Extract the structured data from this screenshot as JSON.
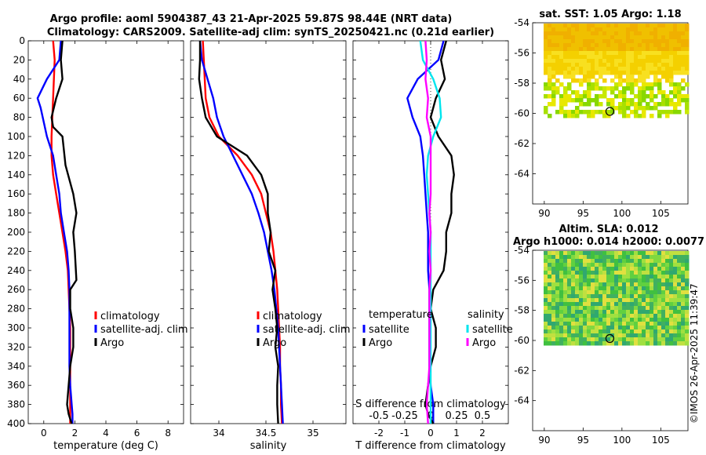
{
  "titles": {
    "line1": "Argo profile: aoml 5904387_43 21-Apr-2025 59.87S 98.44E (NRT data)",
    "line2": "Climatology: CARS2009. Satellite-adj clim: synTS_20250421.nc (0.21d earlier)"
  },
  "depth_axis": {
    "min": 0,
    "max": 400,
    "ticks": [
      0,
      20,
      40,
      60,
      80,
      100,
      120,
      140,
      160,
      180,
      200,
      220,
      240,
      260,
      280,
      300,
      320,
      340,
      360,
      380,
      400
    ]
  },
  "chart_data": [
    {
      "id": "temperature",
      "type": "line",
      "xlabel": "temperature (deg C)",
      "ylabel": "depth",
      "xlim": [
        -1,
        9
      ],
      "ylim": [
        400,
        0
      ],
      "xticks": [
        0,
        2,
        4,
        6,
        8
      ],
      "series": [
        {
          "name": "climatology",
          "color": "#ff0000",
          "x": [
            0.6,
            0.7,
            0.65,
            0.6,
            0.55,
            0.5,
            0.5,
            0.6,
            0.8,
            1.0,
            1.2,
            1.4,
            1.55,
            1.6,
            1.65,
            1.7,
            1.7,
            1.7,
            1.7,
            1.7,
            1.7,
            1.7
          ],
          "y": [
            0,
            20,
            40,
            60,
            80,
            100,
            120,
            140,
            160,
            180,
            200,
            220,
            240,
            260,
            280,
            300,
            320,
            340,
            360,
            380,
            390,
            400
          ]
        },
        {
          "name": "satellite-adj. clim",
          "color": "#0000ff",
          "x": [
            1.1,
            1.0,
            0.2,
            -0.4,
            -0.2,
            0.2,
            0.6,
            0.8,
            1.0,
            1.1,
            1.3,
            1.5,
            1.6,
            1.65,
            1.65,
            1.65,
            1.65,
            1.65,
            1.7,
            1.8,
            1.85,
            1.85
          ],
          "y": [
            0,
            20,
            40,
            60,
            70,
            100,
            120,
            140,
            160,
            180,
            200,
            220,
            240,
            260,
            280,
            300,
            320,
            340,
            360,
            380,
            390,
            400
          ]
        },
        {
          "name": "Argo",
          "color": "#000000",
          "x": [
            1.2,
            1.1,
            1.2,
            0.8,
            0.5,
            0.6,
            1.2,
            1.4,
            1.9,
            2.1,
            1.9,
            2.0,
            2.1,
            1.7,
            1.7,
            1.9,
            1.9,
            1.7,
            1.6,
            1.5,
            1.6,
            1.8
          ],
          "y": [
            0,
            20,
            40,
            60,
            80,
            90,
            100,
            130,
            160,
            180,
            200,
            220,
            250,
            260,
            280,
            300,
            320,
            340,
            360,
            380,
            390,
            400
          ]
        }
      ],
      "legend": {
        "location": "lower-right",
        "entries": [
          "climatology",
          "satellite-adj. clim",
          "Argo"
        ]
      }
    },
    {
      "id": "salinity",
      "type": "line",
      "xlabel": "salinity",
      "ylabel": "depth",
      "xlim": [
        33.7,
        35.35
      ],
      "ylim": [
        400,
        0
      ],
      "xticks": [
        34,
        34.5,
        35
      ],
      "xtick_labels": [
        "34",
        "34.5",
        "35"
      ],
      "series": [
        {
          "name": "climatology",
          "color": "#ff0000",
          "x": [
            33.83,
            33.84,
            33.85,
            33.86,
            33.9,
            34.0,
            34.2,
            34.35,
            34.45,
            34.5,
            34.55,
            34.58,
            34.6,
            34.62,
            34.63,
            34.64,
            34.65,
            34.65,
            34.66,
            34.66,
            34.67
          ],
          "y": [
            0,
            20,
            40,
            60,
            80,
            100,
            120,
            140,
            160,
            180,
            200,
            220,
            240,
            260,
            280,
            300,
            320,
            340,
            360,
            380,
            400
          ]
        },
        {
          "name": "satellite-adj. clim",
          "color": "#0000ff",
          "x": [
            33.8,
            33.82,
            33.88,
            33.94,
            33.98,
            34.05,
            34.15,
            34.25,
            34.35,
            34.42,
            34.48,
            34.52,
            34.56,
            34.59,
            34.61,
            34.63,
            34.64,
            34.65,
            34.66,
            34.67,
            34.68
          ],
          "y": [
            0,
            20,
            40,
            60,
            80,
            100,
            120,
            140,
            160,
            180,
            200,
            220,
            240,
            260,
            280,
            300,
            320,
            340,
            360,
            380,
            400
          ]
        },
        {
          "name": "Argo",
          "color": "#000000",
          "x": [
            33.8,
            33.8,
            33.79,
            33.82,
            33.86,
            33.98,
            34.3,
            34.45,
            34.52,
            34.52,
            34.55,
            34.53,
            34.6,
            34.57,
            34.6,
            34.62,
            34.6,
            34.63,
            34.62,
            34.62,
            34.63
          ],
          "y": [
            0,
            20,
            40,
            60,
            80,
            100,
            120,
            140,
            160,
            180,
            200,
            220,
            240,
            260,
            280,
            300,
            320,
            340,
            360,
            380,
            400
          ]
        }
      ],
      "legend": {
        "location": "lower-right",
        "entries": [
          "climatology",
          "satellite-adj. clim",
          "Argo"
        ]
      }
    },
    {
      "id": "difference",
      "type": "line",
      "xlabel": "T difference from climatology",
      "xlabel_top": "S difference from climatology",
      "ylabel": "depth",
      "xlim": [
        -3,
        3
      ],
      "ylim": [
        400,
        0
      ],
      "xticks": [
        -2,
        -1,
        0,
        1,
        2
      ],
      "xtick_labels": [
        "-2",
        "-1",
        "0",
        "1",
        "2"
      ],
      "s_ticks": [
        -0.5,
        -0.25,
        0,
        0.25,
        0.5
      ],
      "s_tick_labels": [
        "-0.5",
        "-0.25",
        "0",
        "0.25",
        "0.5"
      ],
      "s_scale": 4,
      "series": [
        {
          "name": "temperature satellite",
          "color": "#0000ff",
          "x": [
            0.5,
            0.3,
            -0.5,
            -0.9,
            -0.7,
            -0.4,
            -0.3,
            -0.25,
            -0.2,
            -0.15,
            -0.1,
            -0.1,
            -0.1,
            -0.05,
            -0.05,
            -0.05,
            -0.05,
            -0.05,
            0.0,
            0.1,
            0.1,
            0.1
          ],
          "y": [
            0,
            20,
            40,
            60,
            80,
            100,
            120,
            140,
            160,
            180,
            200,
            220,
            240,
            260,
            280,
            300,
            320,
            340,
            360,
            380,
            390,
            400
          ]
        },
        {
          "name": "temperature Argo",
          "color": "#000000",
          "x": [
            0.6,
            0.4,
            0.55,
            0.2,
            0.0,
            0.3,
            0.8,
            0.9,
            0.8,
            0.8,
            0.6,
            0.6,
            0.5,
            0.1,
            0.0,
            0.2,
            0.2,
            0.0,
            -0.1,
            -0.2,
            -0.1,
            0.1
          ],
          "y": [
            0,
            20,
            40,
            60,
            80,
            100,
            120,
            140,
            160,
            180,
            200,
            220,
            240,
            260,
            280,
            300,
            320,
            340,
            360,
            380,
            390,
            400
          ]
        },
        {
          "name": "salinity satellite",
          "color": "#00e5ee",
          "x": [
            -0.4,
            -0.3,
            0.1,
            0.35,
            0.4,
            0.1,
            -0.1,
            -0.15,
            -0.1,
            -0.05,
            0.0,
            0.0,
            0.0,
            0.0,
            0.0,
            0.0,
            0.0,
            0.0,
            0.0,
            0.0,
            0.0
          ],
          "y": [
            0,
            20,
            40,
            60,
            80,
            100,
            120,
            140,
            160,
            180,
            200,
            220,
            240,
            260,
            280,
            300,
            320,
            340,
            360,
            380,
            400
          ]
        },
        {
          "name": "salinity Argo",
          "color": "#ff00ff",
          "x": [
            -0.2,
            -0.15,
            -0.2,
            -0.1,
            -0.15,
            0.0,
            0.0,
            0.0,
            0.0,
            -0.05,
            0.0,
            -0.05,
            0.0,
            -0.05,
            -0.05,
            -0.05,
            -0.05,
            -0.05,
            -0.1,
            -0.15,
            -0.1
          ],
          "y": [
            0,
            20,
            40,
            60,
            80,
            100,
            120,
            140,
            160,
            180,
            200,
            220,
            240,
            260,
            280,
            300,
            320,
            340,
            360,
            380,
            400
          ]
        }
      ],
      "legend": {
        "location": "lower",
        "headers": [
          "temperature",
          "salinity"
        ],
        "entries": [
          "satellite",
          "Argo",
          "satellite",
          "Argo"
        ]
      }
    }
  ],
  "maps": [
    {
      "id": "sst",
      "title": "sat. SST: 1.05 Argo: 1.18",
      "xlim": [
        88.5,
        108.5
      ],
      "ylim": [
        -66,
        -54
      ],
      "xticks": [
        90,
        95,
        100,
        105
      ],
      "xtick_labels": [
        "90",
        "95",
        "100",
        "105"
      ],
      "yticks": [
        -54,
        -56,
        -58,
        -60,
        -62,
        -64
      ],
      "ytick_labels": [
        "-54",
        "-56",
        "-58",
        "-60",
        "-62",
        "-64"
      ],
      "colors": [
        "#f0c000",
        "#f4d000",
        "#f8e020",
        "#e8e800",
        "#c8e800",
        "#a8e000",
        "#88d800",
        "#f0b000"
      ],
      "marker": {
        "lon": 98.44,
        "lat": -59.87
      }
    },
    {
      "id": "sla",
      "title1": "Altim. SLA: 0.012",
      "title2": "Argo h1000: 0.014 h2000: 0.0077",
      "xlim": [
        88.5,
        108.5
      ],
      "ylim": [
        -66,
        -54
      ],
      "xticks": [
        90,
        95,
        100,
        105
      ],
      "xtick_labels": [
        "90",
        "95",
        "100",
        "105"
      ],
      "yticks": [
        -54,
        -56,
        -58,
        -60,
        -62,
        -64
      ],
      "ytick_labels": [
        "-54",
        "-56",
        "-58",
        "-60",
        "-62",
        "-64"
      ],
      "colors": [
        "#40c040",
        "#60d040",
        "#80d840",
        "#a0e040",
        "#c0e040",
        "#40b060",
        "#30a870",
        "#e0e040"
      ],
      "marker": {
        "lon": 98.44,
        "lat": -59.87
      }
    }
  ],
  "watermark": "©IMOS 26-Apr-2025 11:39:47"
}
